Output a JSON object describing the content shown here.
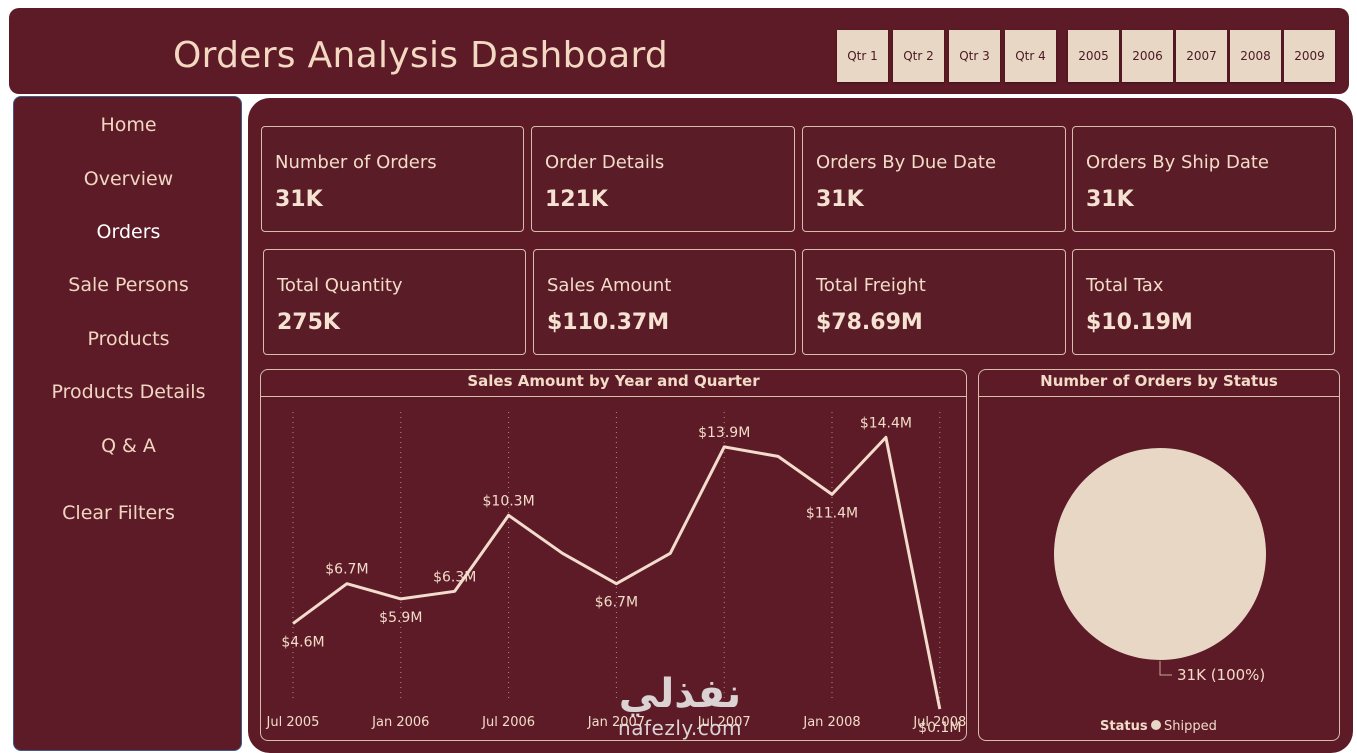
{
  "header": {
    "title": "Orders Analysis Dashboard",
    "quarters": [
      "Qtr 1",
      "Qtr 2",
      "Qtr 3",
      "Qtr 4"
    ],
    "years": [
      "2005",
      "2006",
      "2007",
      "2008",
      "2009"
    ]
  },
  "sidebar": {
    "items": [
      {
        "label": "Home"
      },
      {
        "label": "Overview"
      },
      {
        "label": "Orders"
      },
      {
        "label": "Sale Persons"
      },
      {
        "label": "Products"
      },
      {
        "label": "Products Details"
      },
      {
        "label": "Q & A"
      },
      {
        "label": "Clear Filters"
      }
    ],
    "active": "Orders"
  },
  "kpis": [
    {
      "label": "Number of Orders",
      "value": "31K"
    },
    {
      "label": "Order Details",
      "value": "121K"
    },
    {
      "label": "Orders By Due Date",
      "value": "31K"
    },
    {
      "label": "Orders By Ship Date",
      "value": "31K"
    },
    {
      "label": "Total Quantity",
      "value": "275K"
    },
    {
      "label": "Sales Amount",
      "value": "$110.37M"
    },
    {
      "label": "Total Freight",
      "value": "$78.69M"
    },
    {
      "label": "Total Tax",
      "value": "$10.19M"
    }
  ],
  "colors": {
    "background": "#5c1b27",
    "text": "#f2dcc8",
    "line": "#f3dccd",
    "pie": "#e8d7c5",
    "slicer": "#e8d7c5"
  },
  "chart_data": [
    {
      "type": "line",
      "title": "Sales Amount by Year and Quarter",
      "x": [
        "2005 Q3",
        "2005 Q4",
        "2006 Q1",
        "2006 Q2",
        "2006 Q3",
        "2006 Q4",
        "2007 Q1",
        "2007 Q2",
        "2007 Q3",
        "2007 Q4",
        "2008 Q1",
        "2008 Q2",
        "2008 Q3"
      ],
      "values": [
        4.6,
        6.7,
        5.9,
        6.3,
        10.3,
        8.3,
        6.7,
        8.3,
        13.9,
        13.4,
        11.4,
        14.4,
        0.1
      ],
      "data_labels": [
        "$4.6M",
        "$6.7M",
        "$5.9M",
        "$6.3M",
        "$10.3M",
        "",
        "$6.7M",
        "",
        "$13.9M",
        "",
        "$11.4M",
        "$14.4M",
        "$0.1M"
      ],
      "label_above": [
        false,
        true,
        false,
        true,
        true,
        false,
        false,
        false,
        true,
        false,
        false,
        true,
        false
      ],
      "x_ticks": [
        {
          "index": 0,
          "label": "Jul 2005"
        },
        {
          "index": 2,
          "label": "Jan 2006"
        },
        {
          "index": 4,
          "label": "Jul 2006"
        },
        {
          "index": 6,
          "label": "Jan 2007"
        },
        {
          "index": 8,
          "label": "Jul 2007"
        },
        {
          "index": 10,
          "label": "Jan 2008"
        },
        {
          "index": 12,
          "label": "Jul 2008"
        }
      ],
      "ylim": [
        0,
        15
      ],
      "grid": "vertical dotted"
    },
    {
      "type": "pie",
      "title": "Number of Orders by Status",
      "categories": [
        "Shipped"
      ],
      "values": [
        31
      ],
      "data_labels": [
        "31K (100%)"
      ],
      "legend": {
        "title": "Status",
        "items": [
          "Shipped"
        ],
        "position": "bottom"
      }
    }
  ],
  "watermark": {
    "arabic": "نفذلي",
    "latin": "nafezly.com"
  }
}
